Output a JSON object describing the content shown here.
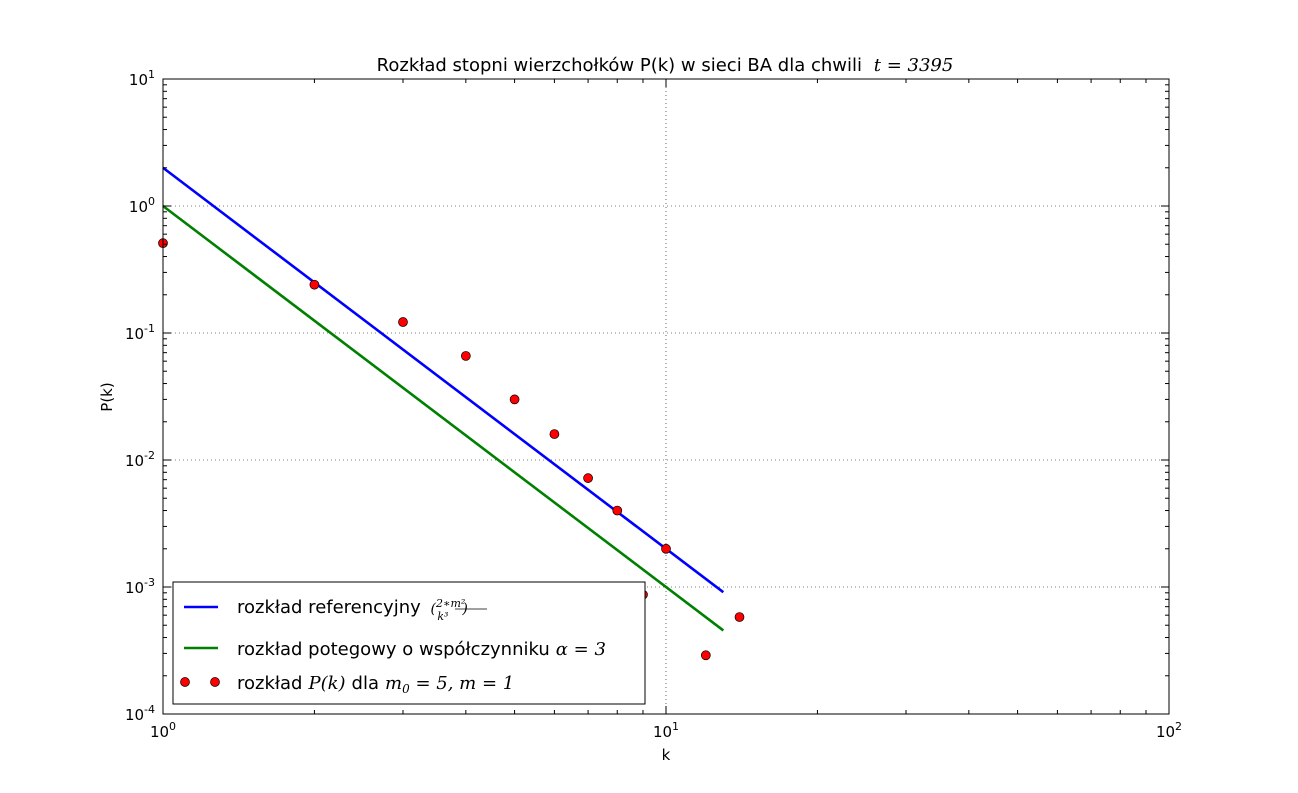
{
  "chart_data": {
    "type": "line",
    "title": "Rozkład stopni wierzchołków P(k) w sieci BA dla chwili",
    "title_math": "t = 3395",
    "xlabel": "k",
    "ylabel": "P(k)",
    "x_scale": "log",
    "y_scale": "log",
    "xlim": [
      1,
      100
    ],
    "ylim": [
      0.0001,
      10
    ],
    "grid": true,
    "legend_position": "lower-left",
    "x_ticks": [
      {
        "value": 1,
        "base": "10",
        "exp": "0"
      },
      {
        "value": 10,
        "base": "10",
        "exp": "1"
      },
      {
        "value": 100,
        "base": "10",
        "exp": "2"
      }
    ],
    "y_ticks": [
      {
        "value": 10,
        "base": "10",
        "exp": "1"
      },
      {
        "value": 1,
        "base": "10",
        "exp": "0"
      },
      {
        "value": 0.1,
        "base": "10",
        "exp": "-1"
      },
      {
        "value": 0.01,
        "base": "10",
        "exp": "-2"
      },
      {
        "value": 0.001,
        "base": "10",
        "exp": "-3"
      },
      {
        "value": 0.0001,
        "base": "10",
        "exp": "-4"
      }
    ],
    "series": [
      {
        "name": "rozkład referencyjny",
        "kind": "line",
        "color": "#0000ff",
        "x": [
          1,
          13
        ],
        "y": [
          2,
          0.00091
        ]
      },
      {
        "name": "rozkład potegowy o współczynniku",
        "kind": "line",
        "color": "#008000",
        "x": [
          1,
          13
        ],
        "y": [
          1,
          0.000455
        ]
      },
      {
        "name": "rozkład",
        "kind": "scatter",
        "color": "#ff0000",
        "x": [
          1,
          2,
          3,
          4,
          5,
          6,
          7,
          8,
          9,
          10,
          12,
          14
        ],
        "y": [
          0.51,
          0.24,
          0.122,
          0.066,
          0.03,
          0.016,
          0.0072,
          0.004,
          0.00087,
          0.002,
          0.00029,
          0.00058
        ]
      }
    ]
  }
}
